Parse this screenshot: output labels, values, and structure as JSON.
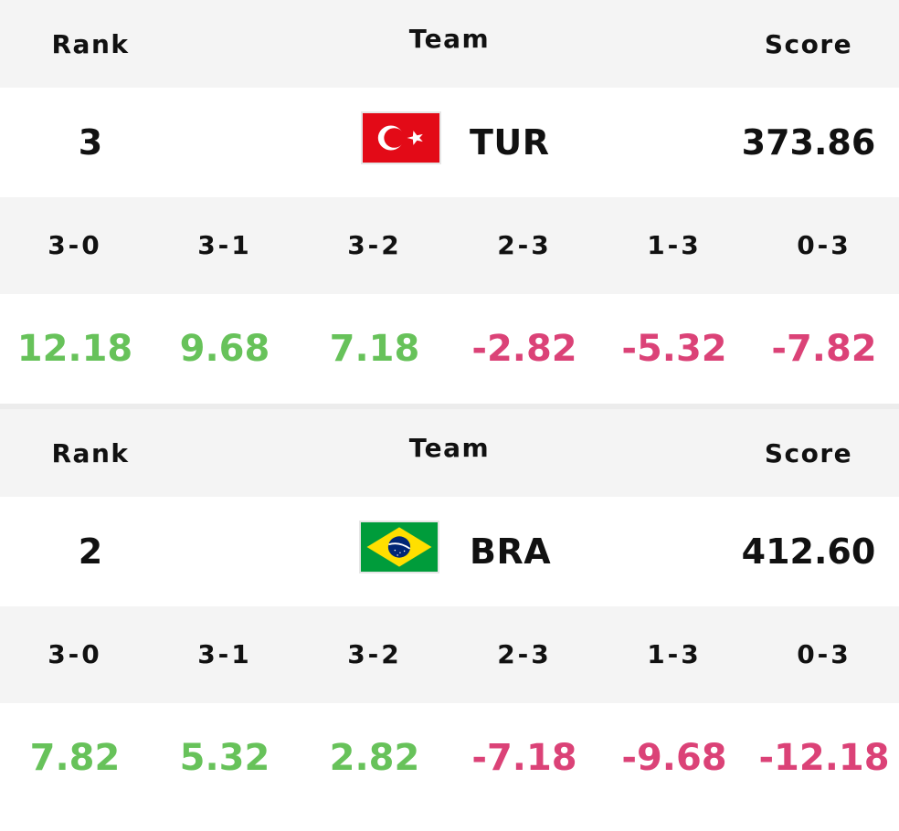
{
  "headers": {
    "rank": "Rank",
    "team": "Team",
    "score": "Score"
  },
  "outcome_labels": [
    "3-0",
    "3-1",
    "3-2",
    "2-3",
    "1-3",
    "0-3"
  ],
  "colors": {
    "positive": "#67c25a",
    "negative": "#db4277",
    "header_bg": "#f4f4f4"
  },
  "teams": [
    {
      "rank": "3",
      "code": "TUR",
      "flag_icon": "turkey-flag-icon",
      "score": "373.86",
      "points": [
        "12.18",
        "9.68",
        "7.18",
        "-2.82",
        "-5.32",
        "-7.82"
      ]
    },
    {
      "rank": "2",
      "code": "BRA",
      "flag_icon": "brazil-flag-icon",
      "score": "412.60",
      "points": [
        "7.82",
        "5.32",
        "2.82",
        "-7.18",
        "-9.68",
        "-12.18"
      ]
    }
  ]
}
